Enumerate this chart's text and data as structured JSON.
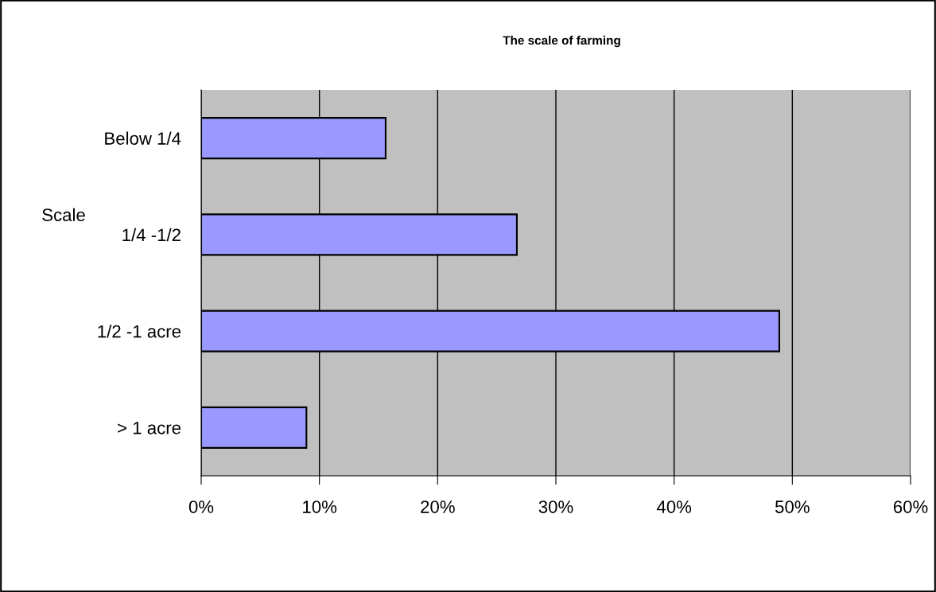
{
  "chart_data": {
    "type": "bar",
    "orientation": "horizontal",
    "title": "The scale of farming",
    "ylabel": "Scale",
    "categories": [
      "Below 1/4",
      "1/4 -1/2",
      "1/2 -1 acre",
      "> 1 acre"
    ],
    "values": [
      15.6,
      26.7,
      48.9,
      8.9
    ],
    "color": "#9999ff",
    "xlim": [
      0,
      60
    ],
    "xticks": [
      {
        "value": 0,
        "label": "0%"
      },
      {
        "value": 10,
        "label": "10%"
      },
      {
        "value": 20,
        "label": "20%"
      },
      {
        "value": 30,
        "label": "30%"
      },
      {
        "value": 40,
        "label": "40%"
      },
      {
        "value": 50,
        "label": "50%"
      },
      {
        "value": 60,
        "label": "60%"
      }
    ],
    "grid": "x",
    "legend": false
  }
}
